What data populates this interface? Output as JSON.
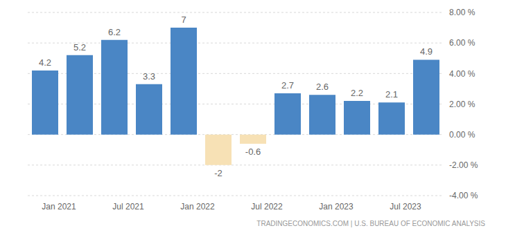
{
  "chart_data": {
    "type": "bar",
    "categories": [
      null,
      "Jan 2021",
      null,
      "Jul 2021",
      null,
      "Jan 2022",
      null,
      "Jul 2022",
      null,
      "Jan 2023",
      null,
      "Jul 2023"
    ],
    "values": [
      4.2,
      5.2,
      6.2,
      3.3,
      7,
      -2,
      -0.6,
      2.7,
      2.6,
      2.2,
      2.1,
      4.9
    ],
    "colors": [
      "#4a86c5",
      "#4a86c5",
      "#4a86c5",
      "#4a86c5",
      "#4a86c5",
      "#f7e1b5",
      "#f7e1b5",
      "#4a86c5",
      "#4a86c5",
      "#4a86c5",
      "#4a86c5",
      "#4a86c5"
    ],
    "ylim": [
      -4,
      8
    ],
    "yticks": [
      {
        "value": -4,
        "label": "-4.00 %"
      },
      {
        "value": -2,
        "label": "-2.00 %"
      },
      {
        "value": 0,
        "label": "0.00 %"
      },
      {
        "value": 2,
        "label": "2.00 %"
      },
      {
        "value": 4,
        "label": "4.00 %"
      },
      {
        "value": 6,
        "label": "6.00 %"
      },
      {
        "value": 8,
        "label": "8.00 %"
      }
    ],
    "grid": true,
    "data_labels": true,
    "annotations": [
      "TRADINGECONOMICS.COM | U.S. BUREAU OF ECONOMIC ANALYSIS"
    ]
  }
}
